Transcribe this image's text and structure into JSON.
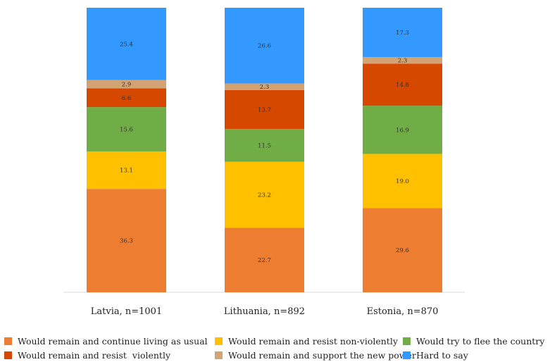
{
  "chart_data": {
    "type": "bar",
    "stacked": true,
    "categories": [
      "Latvia, n=1001",
      "Lithuania, n=892",
      "Estonia, n=870"
    ],
    "ylim": [
      0,
      100
    ],
    "grid": false,
    "legend_position": "bottom",
    "series": [
      {
        "name": "Would remain and continue living as usual",
        "color": "#ED7D31",
        "values": [
          36.3,
          22.7,
          29.6
        ]
      },
      {
        "name": "Would remain and resist non-violently",
        "color": "#FFC000",
        "values": [
          13.1,
          23.2,
          19.0
        ]
      },
      {
        "name": "Would try to flee the country",
        "color": "#70AD47",
        "values": [
          15.6,
          11.5,
          16.9
        ]
      },
      {
        "name": "Would remain and resist  violently",
        "color": "#D64800",
        "values": [
          6.6,
          13.7,
          14.8
        ]
      },
      {
        "name": "Would remain and support the new power",
        "color": "#D4A373",
        "values": [
          2.9,
          2.3,
          2.3
        ]
      },
      {
        "name": "Hard to say",
        "color": "#3399FF",
        "values": [
          25.4,
          26.6,
          17.3
        ]
      }
    ]
  }
}
